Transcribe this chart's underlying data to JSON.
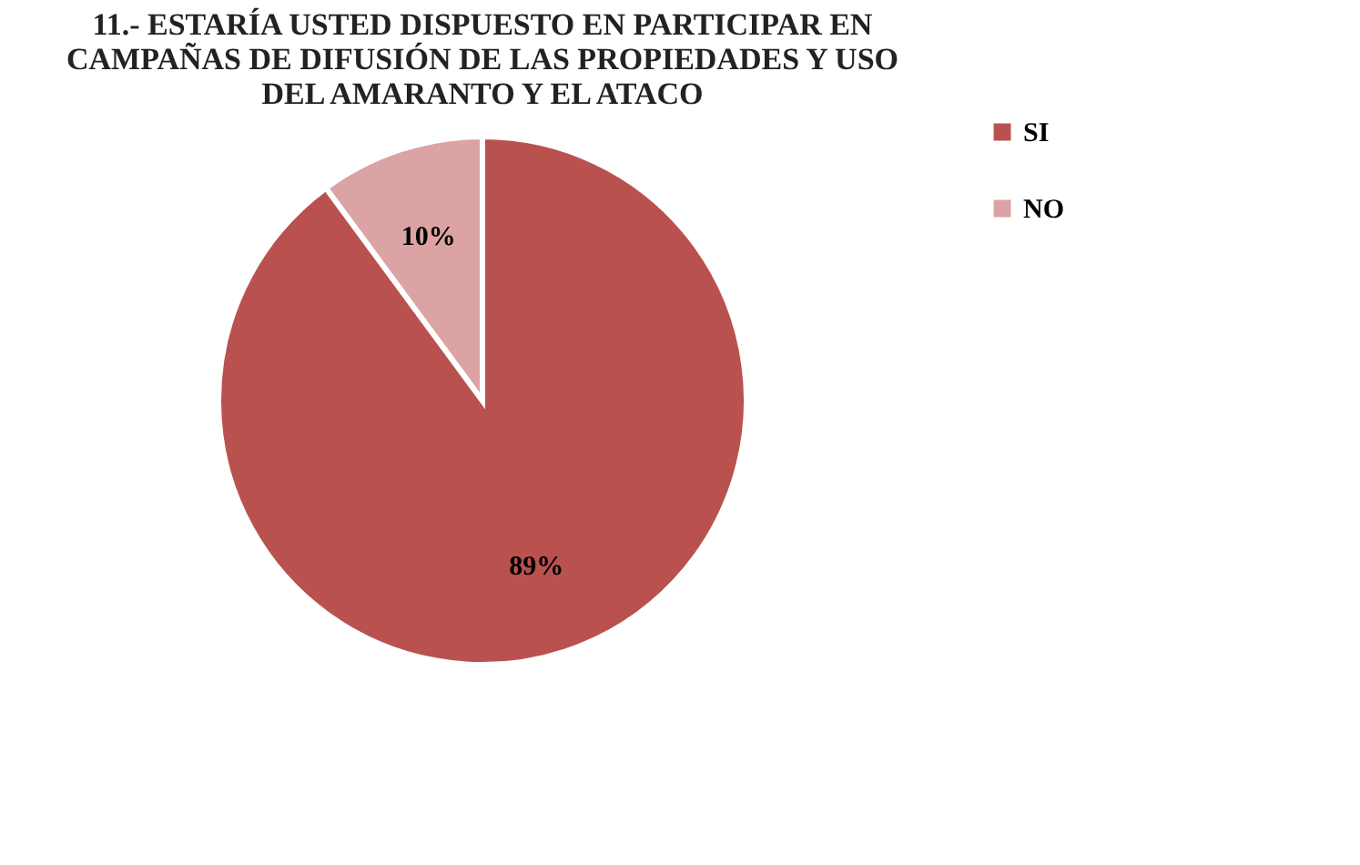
{
  "chart_data": {
    "type": "pie",
    "title": "11.- ESTARÍA USTED DISPUESTO EN PARTICIPAR EN CAMPAÑAS DE DIFUSIÓN DE LAS PROPIEDADES Y USO DEL AMARANTO Y EL ATACO",
    "categories": [
      "SI",
      "NO"
    ],
    "values": [
      89,
      10
    ],
    "colors": [
      "#b9524f",
      "#dba3a3"
    ],
    "value_labels": [
      "89%",
      "10%"
    ],
    "legend": "right"
  }
}
